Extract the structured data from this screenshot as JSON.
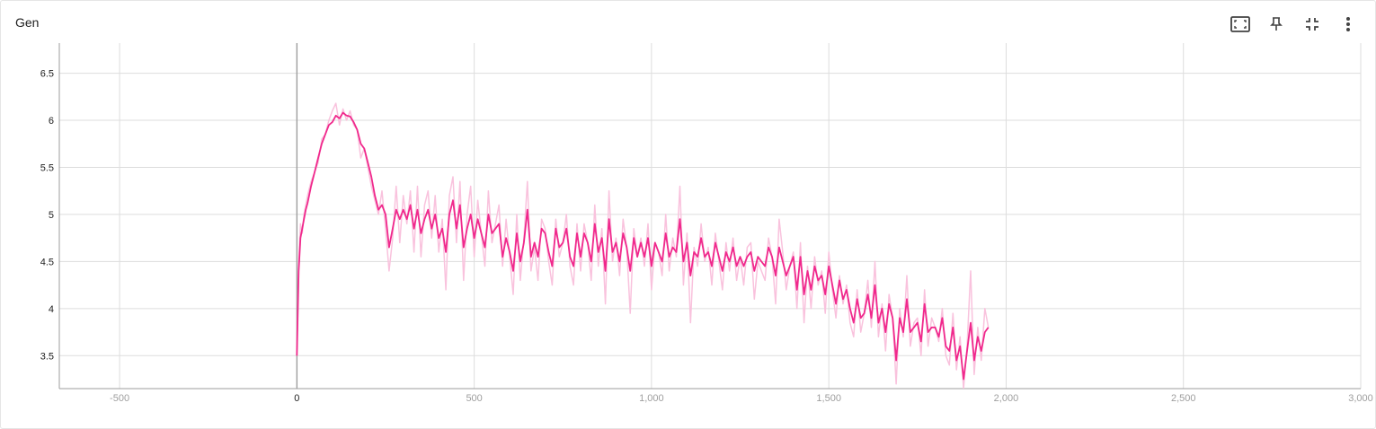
{
  "title": "Gen",
  "toolbar": {
    "icons": [
      "fit-domain-icon",
      "pin-icon",
      "collapse-icon",
      "more-vert-icon"
    ]
  },
  "colors": {
    "smoothed": "#f0288c",
    "raw": "#f9c2dd",
    "grid": "#dddddd",
    "axis": "#9e9e9e",
    "tick_y": "#212121",
    "tick_x": "#9e9e9e",
    "zero_line": "#9e9e9e"
  },
  "chart_data": {
    "type": "line",
    "title": "Gen",
    "xlabel": "",
    "ylabel": "",
    "xlim": [
      -670,
      3000
    ],
    "ylim": [
      3.15,
      6.82
    ],
    "x_ticks": [
      -500,
      0,
      500,
      1000,
      1500,
      2000,
      2500,
      3000
    ],
    "x_tick_labels": [
      "-500",
      "0",
      "500",
      "1,000",
      "1,500",
      "2,000",
      "2,500",
      "3,000"
    ],
    "y_ticks": [
      3.5,
      4,
      4.5,
      5,
      5.5,
      6,
      6.5
    ],
    "y_tick_labels": [
      "3.5",
      "4",
      "4.5",
      "5",
      "5.5",
      "6",
      "6.5"
    ],
    "grid": true,
    "series": [
      {
        "role": "raw",
        "x": [
          0,
          5,
          10,
          15,
          20,
          25,
          30,
          40,
          50,
          60,
          70,
          80,
          90,
          100,
          110,
          120,
          130,
          140,
          150,
          160,
          170,
          180,
          190,
          200,
          210,
          220,
          230,
          240,
          250,
          260,
          270,
          280,
          290,
          300,
          310,
          320,
          330,
          340,
          350,
          360,
          370,
          380,
          390,
          400,
          410,
          420,
          430,
          440,
          450,
          460,
          470,
          480,
          490,
          500,
          510,
          520,
          530,
          540,
          550,
          560,
          570,
          580,
          590,
          600,
          610,
          620,
          630,
          640,
          650,
          660,
          670,
          680,
          690,
          700,
          710,
          720,
          730,
          740,
          750,
          760,
          770,
          780,
          790,
          800,
          810,
          820,
          830,
          840,
          850,
          860,
          870,
          880,
          890,
          900,
          910,
          920,
          930,
          940,
          950,
          960,
          970,
          980,
          990,
          1000,
          1010,
          1020,
          1030,
          1040,
          1050,
          1060,
          1070,
          1080,
          1090,
          1100,
          1110,
          1120,
          1130,
          1140,
          1150,
          1160,
          1170,
          1180,
          1190,
          1200,
          1210,
          1220,
          1230,
          1240,
          1250,
          1260,
          1270,
          1280,
          1290,
          1300,
          1310,
          1320,
          1330,
          1340,
          1350,
          1360,
          1370,
          1380,
          1390,
          1400,
          1410,
          1420,
          1430,
          1440,
          1450,
          1460,
          1470,
          1480,
          1490,
          1500,
          1510,
          1520,
          1530,
          1540,
          1550,
          1560,
          1570,
          1580,
          1590,
          1600,
          1610,
          1620,
          1630,
          1640,
          1650,
          1660,
          1670,
          1680,
          1690,
          1700,
          1710,
          1720,
          1730,
          1740,
          1750,
          1760,
          1770,
          1780,
          1790,
          1800,
          1810,
          1820,
          1830,
          1840,
          1850,
          1860,
          1870,
          1880,
          1890,
          1900,
          1910,
          1920,
          1930,
          1940,
          1950
        ],
        "values": [
          3.5,
          4.5,
          4.9,
          4.8,
          5.0,
          5.1,
          5.2,
          5.35,
          5.45,
          5.55,
          5.8,
          5.85,
          6.0,
          6.1,
          6.18,
          5.95,
          6.12,
          6.0,
          6.1,
          5.95,
          5.9,
          5.6,
          5.7,
          5.5,
          5.3,
          5.15,
          5.0,
          5.25,
          4.85,
          4.4,
          4.75,
          5.3,
          4.7,
          5.2,
          4.9,
          5.25,
          4.6,
          5.3,
          4.55,
          5.1,
          5.25,
          4.75,
          5.2,
          4.6,
          4.95,
          4.2,
          5.2,
          5.4,
          4.7,
          5.35,
          4.3,
          5.0,
          5.3,
          4.55,
          5.15,
          4.8,
          4.45,
          5.25,
          4.7,
          4.9,
          5.1,
          4.45,
          4.95,
          4.55,
          4.15,
          5.0,
          4.3,
          4.75,
          5.35,
          4.4,
          4.65,
          4.3,
          4.95,
          4.85,
          4.5,
          4.25,
          4.95,
          4.55,
          4.7,
          5.0,
          4.45,
          4.25,
          4.9,
          4.4,
          4.9,
          4.7,
          4.3,
          5.1,
          4.45,
          4.85,
          4.05,
          5.25,
          4.5,
          4.75,
          4.35,
          4.95,
          4.65,
          3.95,
          4.85,
          4.55,
          4.75,
          4.45,
          4.9,
          4.2,
          4.7,
          4.6,
          4.35,
          5.0,
          4.4,
          4.75,
          4.55,
          5.3,
          4.25,
          4.8,
          3.85,
          4.65,
          4.45,
          4.9,
          4.5,
          4.65,
          4.25,
          4.8,
          4.5,
          4.2,
          4.7,
          4.4,
          4.75,
          4.3,
          4.55,
          4.25,
          4.65,
          4.7,
          4.1,
          4.5,
          4.4,
          4.3,
          4.75,
          4.55,
          4.05,
          4.95,
          4.6,
          4.2,
          4.45,
          4.6,
          4.0,
          4.7,
          3.85,
          4.45,
          4.0,
          4.55,
          4.25,
          4.4,
          3.95,
          4.6,
          4.2,
          3.9,
          4.35,
          4.05,
          4.25,
          3.85,
          3.7,
          4.2,
          3.75,
          3.95,
          4.3,
          3.8,
          4.5,
          3.7,
          4.05,
          3.55,
          4.15,
          3.9,
          3.2,
          4.0,
          3.7,
          4.35,
          3.6,
          3.85,
          3.9,
          3.5,
          4.2,
          3.6,
          3.9,
          3.8,
          3.65,
          4.0,
          3.5,
          3.4,
          3.95,
          3.35,
          3.7,
          3.15,
          3.6,
          4.4,
          3.3,
          3.8,
          3.45,
          4.0,
          3.8
        ]
      },
      {
        "role": "smoothed",
        "x": [
          0,
          5,
          10,
          15,
          20,
          25,
          30,
          40,
          50,
          60,
          70,
          80,
          90,
          100,
          110,
          120,
          130,
          140,
          150,
          160,
          170,
          180,
          190,
          200,
          210,
          220,
          230,
          240,
          250,
          260,
          270,
          280,
          290,
          300,
          310,
          320,
          330,
          340,
          350,
          360,
          370,
          380,
          390,
          400,
          410,
          420,
          430,
          440,
          450,
          460,
          470,
          480,
          490,
          500,
          510,
          520,
          530,
          540,
          550,
          560,
          570,
          580,
          590,
          600,
          610,
          620,
          630,
          640,
          650,
          660,
          670,
          680,
          690,
          700,
          710,
          720,
          730,
          740,
          750,
          760,
          770,
          780,
          790,
          800,
          810,
          820,
          830,
          840,
          850,
          860,
          870,
          880,
          890,
          900,
          910,
          920,
          930,
          940,
          950,
          960,
          970,
          980,
          990,
          1000,
          1010,
          1020,
          1030,
          1040,
          1050,
          1060,
          1070,
          1080,
          1090,
          1100,
          1110,
          1120,
          1130,
          1140,
          1150,
          1160,
          1170,
          1180,
          1190,
          1200,
          1210,
          1220,
          1230,
          1240,
          1250,
          1260,
          1270,
          1280,
          1290,
          1300,
          1310,
          1320,
          1330,
          1340,
          1350,
          1360,
          1370,
          1380,
          1390,
          1400,
          1410,
          1420,
          1430,
          1440,
          1450,
          1460,
          1470,
          1480,
          1490,
          1500,
          1510,
          1520,
          1530,
          1540,
          1550,
          1560,
          1570,
          1580,
          1590,
          1600,
          1610,
          1620,
          1630,
          1640,
          1650,
          1660,
          1670,
          1680,
          1690,
          1700,
          1710,
          1720,
          1730,
          1740,
          1750,
          1760,
          1770,
          1780,
          1790,
          1800,
          1810,
          1820,
          1830,
          1840,
          1850,
          1860,
          1870,
          1880,
          1890,
          1900,
          1910,
          1920,
          1930,
          1940,
          1950
        ],
        "values": [
          3.5,
          4.4,
          4.75,
          4.85,
          4.95,
          5.05,
          5.12,
          5.3,
          5.45,
          5.6,
          5.75,
          5.85,
          5.95,
          5.98,
          6.05,
          6.02,
          6.08,
          6.05,
          6.04,
          5.98,
          5.9,
          5.75,
          5.7,
          5.55,
          5.4,
          5.2,
          5.05,
          5.1,
          5.0,
          4.65,
          4.85,
          5.05,
          4.95,
          5.05,
          4.95,
          5.1,
          4.85,
          5.05,
          4.8,
          4.95,
          5.05,
          4.85,
          5.0,
          4.75,
          4.85,
          4.6,
          5.0,
          5.15,
          4.85,
          5.1,
          4.65,
          4.85,
          5.0,
          4.75,
          4.95,
          4.8,
          4.65,
          5.0,
          4.8,
          4.85,
          4.9,
          4.55,
          4.75,
          4.6,
          4.4,
          4.8,
          4.5,
          4.7,
          5.05,
          4.55,
          4.7,
          4.55,
          4.85,
          4.8,
          4.6,
          4.45,
          4.85,
          4.65,
          4.7,
          4.85,
          4.55,
          4.45,
          4.8,
          4.55,
          4.8,
          4.7,
          4.5,
          4.9,
          4.6,
          4.75,
          4.4,
          4.95,
          4.6,
          4.7,
          4.5,
          4.8,
          4.65,
          4.4,
          4.75,
          4.55,
          4.7,
          4.55,
          4.75,
          4.45,
          4.7,
          4.6,
          4.5,
          4.8,
          4.55,
          4.65,
          4.6,
          4.95,
          4.5,
          4.7,
          4.35,
          4.6,
          4.55,
          4.75,
          4.55,
          4.6,
          4.45,
          4.7,
          4.55,
          4.4,
          4.6,
          4.5,
          4.65,
          4.45,
          4.55,
          4.45,
          4.55,
          4.6,
          4.4,
          4.55,
          4.5,
          4.45,
          4.65,
          4.55,
          4.35,
          4.65,
          4.5,
          4.35,
          4.45,
          4.55,
          4.2,
          4.55,
          4.15,
          4.4,
          4.2,
          4.45,
          4.3,
          4.35,
          4.15,
          4.45,
          4.25,
          4.05,
          4.3,
          4.1,
          4.2,
          4.0,
          3.85,
          4.1,
          3.9,
          3.95,
          4.15,
          3.9,
          4.25,
          3.85,
          4.0,
          3.75,
          4.05,
          3.9,
          3.45,
          3.9,
          3.75,
          4.1,
          3.75,
          3.8,
          3.85,
          3.65,
          4.05,
          3.75,
          3.8,
          3.8,
          3.7,
          3.9,
          3.6,
          3.55,
          3.8,
          3.45,
          3.6,
          3.25,
          3.55,
          3.85,
          3.45,
          3.7,
          3.55,
          3.75,
          3.8
        ]
      }
    ]
  }
}
